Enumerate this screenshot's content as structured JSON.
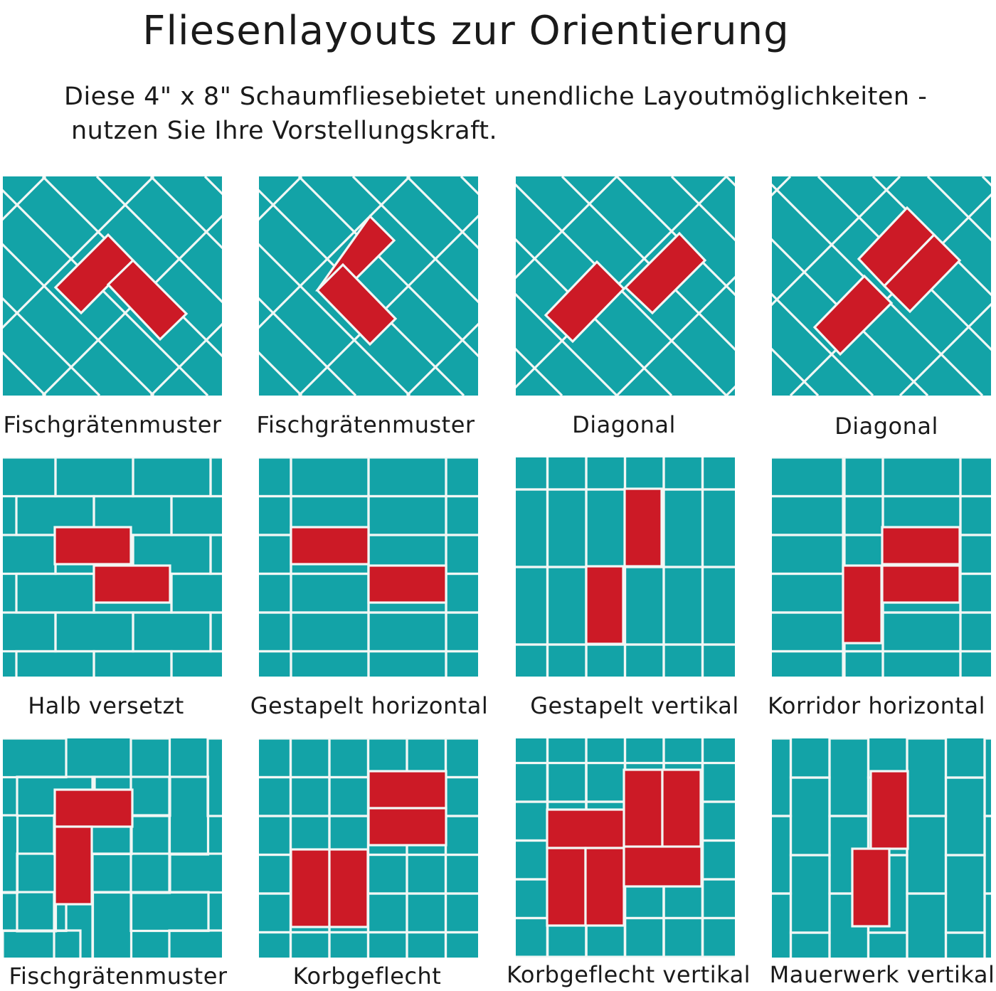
{
  "header": {
    "title": "Fliesenlayouts zur Orientierung",
    "subtitle_line1": "Diese 4\" x 8\" Schaumfliesebietet unendliche Layoutmöglichkeiten -",
    "subtitle_line2": "nutzen Sie Ihre Vorstellungskraft."
  },
  "colors": {
    "tile": "#13a3a7",
    "grout": "#f2f7f5",
    "highlight": "#cc1a26"
  },
  "layouts": [
    {
      "name": "Fischgrätenmuster",
      "pattern": "herringbone-diagonal-a"
    },
    {
      "name": "Fischgrätenmuster",
      "pattern": "herringbone-diagonal-b"
    },
    {
      "name": "Diagonal",
      "pattern": "diagonal-a"
    },
    {
      "name": "Diagonal",
      "pattern": "diagonal-b"
    },
    {
      "name": "Halb versetzt",
      "pattern": "half-offset"
    },
    {
      "name": "Gestapelt horizontal",
      "pattern": "stacked-horizontal"
    },
    {
      "name": "Gestapelt vertikal",
      "pattern": "stacked-vertical"
    },
    {
      "name": "Korridor horizontal",
      "pattern": "corridor-horizontal"
    },
    {
      "name": "Fischgrätenmuster",
      "pattern": "herringbone-straight"
    },
    {
      "name": "Korbgeflecht",
      "pattern": "basketweave"
    },
    {
      "name": "Korbgeflecht vertikal",
      "pattern": "basketweave-vertical"
    },
    {
      "name": "Mauerwerk vertikal",
      "pattern": "running-bond-vertical"
    }
  ]
}
